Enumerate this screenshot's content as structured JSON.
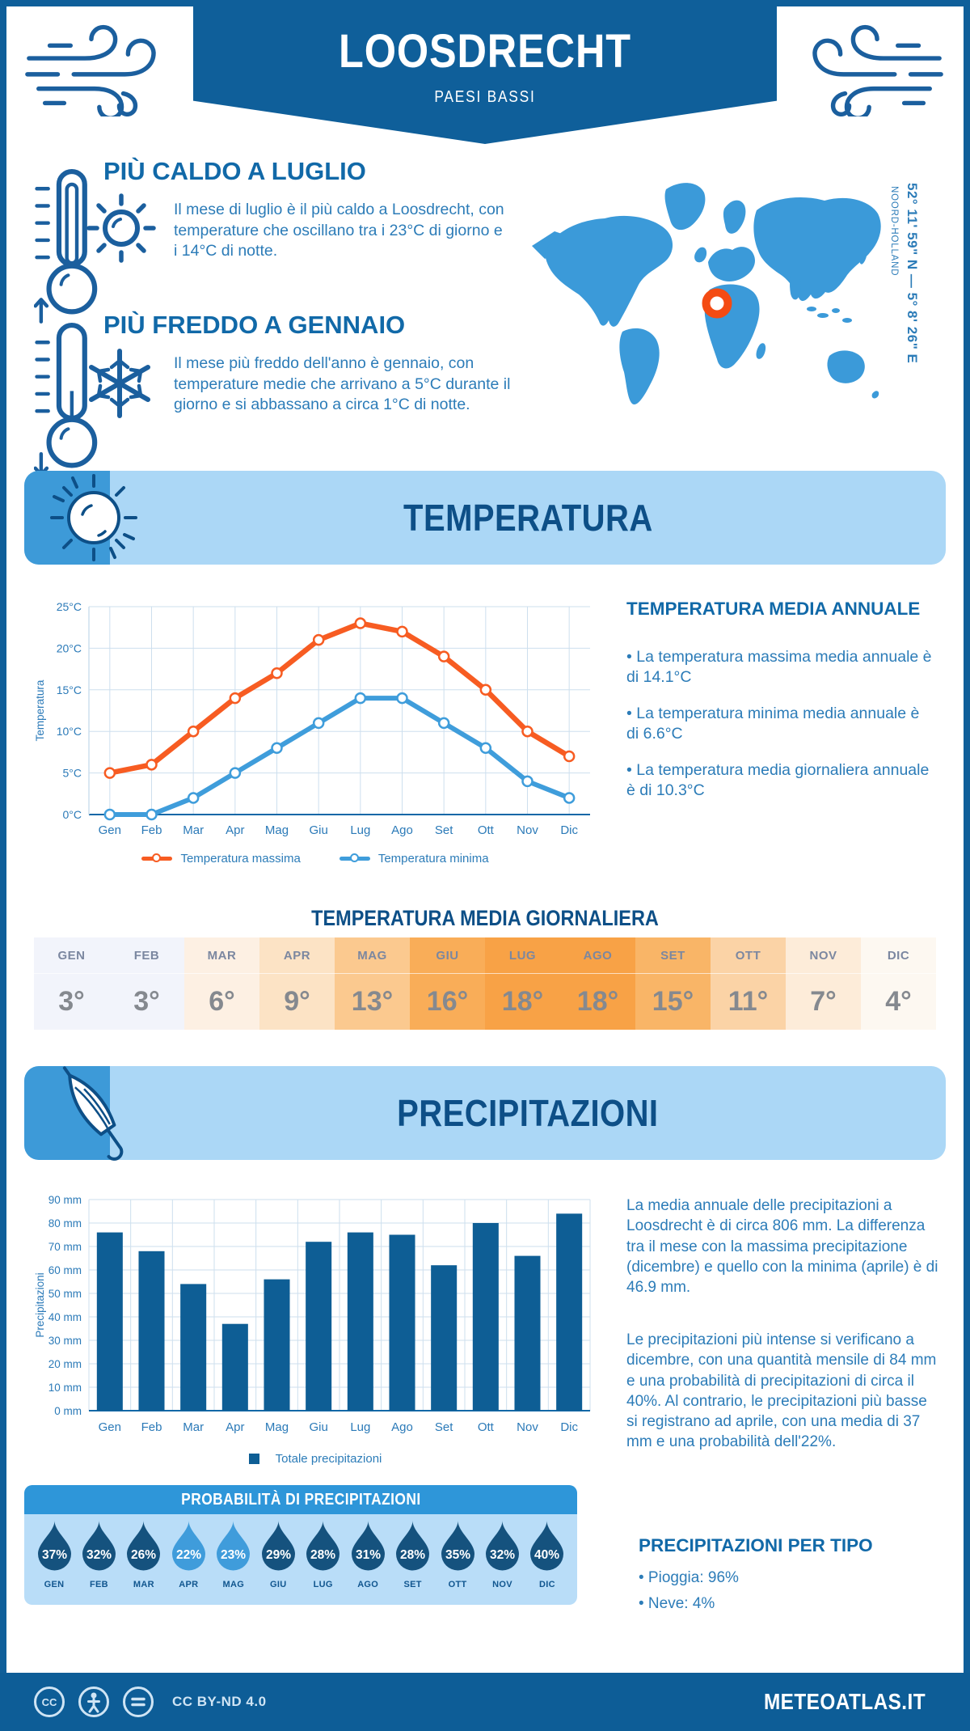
{
  "header": {
    "title": "LOOSDRECHT",
    "subtitle": "PAESI BASSI"
  },
  "highlights": [
    {
      "title": "PIÙ CALDO A LUGLIO",
      "text": "Il mese di luglio è il più caldo a Loosdrecht, con temperature che oscillano tra i 23°C di giorno e i 14°C di notte."
    },
    {
      "title": "PIÙ FREDDO A GENNAIO",
      "text": "Il mese più freddo dell'anno è gennaio, con temperature medie che arrivano a 5°C durante il giorno e si abbassano a circa 1°C di notte."
    }
  ],
  "map": {
    "coordinates": "52° 11' 59\" N — 5° 8' 26\" E",
    "region": "NOORD-HOLLAND",
    "marker_color": "#f44b13",
    "land_color": "#3b9ad9"
  },
  "temperature_section": {
    "banner": "TEMPERATURA",
    "summary_title": "TEMPERATURA MEDIA ANNUALE",
    "bullets": [
      "• La temperatura massima media annuale è di 14.1°C",
      "• La temperatura minima media annuale è di 6.6°C",
      "• La temperatura media giornaliera annuale è di 10.3°C"
    ],
    "daily_title": "TEMPERATURA MEDIA GIORNALIERA"
  },
  "daily_table": {
    "months": [
      "GEN",
      "FEB",
      "MAR",
      "APR",
      "MAG",
      "GIU",
      "LUG",
      "AGO",
      "SET",
      "OTT",
      "NOV",
      "DIC"
    ],
    "values": [
      "3°",
      "3°",
      "6°",
      "9°",
      "13°",
      "16°",
      "18°",
      "18°",
      "15°",
      "11°",
      "7°",
      "4°"
    ],
    "cell_colors": [
      "#f2f4fb",
      "#f2f4fb",
      "#fdf0e3",
      "#fce3c5",
      "#fbc98f",
      "#f9ad58",
      "#f8a246",
      "#f8a246",
      "#f9b567",
      "#fbd3a6",
      "#fdecd9",
      "#fdf8f1"
    ]
  },
  "precipitation_section": {
    "banner": "PRECIPITAZIONI",
    "paragraphs": [
      "La media annuale delle precipitazioni a Loosdrecht è di circa 806 mm. La differenza tra il mese con la massima precipitazione (dicembre) e quello con la minima (aprile) è di 46.9 mm.",
      "Le precipitazioni più intense si verificano a dicembre, con una quantità mensile di 84 mm e una probabilità di precipitazioni di circa il 40%. Al contrario, le precipitazioni più basse si registrano ad aprile, con una media di 37 mm e una probabilità dell'22%."
    ],
    "legend": "Totale precipitazioni"
  },
  "probability": {
    "title": "PROBABILITÀ DI PRECIPITAZIONI",
    "months": [
      "GEN",
      "FEB",
      "MAR",
      "APR",
      "MAG",
      "GIU",
      "LUG",
      "AGO",
      "SET",
      "OTT",
      "NOV",
      "DIC"
    ],
    "values": [
      "37%",
      "32%",
      "26%",
      "22%",
      "23%",
      "29%",
      "28%",
      "31%",
      "28%",
      "35%",
      "32%",
      "40%"
    ],
    "drop_colors": [
      "#15527e",
      "#15527e",
      "#15527e",
      "#3f9cdb",
      "#3f9cdb",
      "#15527e",
      "#15527e",
      "#15527e",
      "#15527e",
      "#15527e",
      "#15527e",
      "#15527e"
    ]
  },
  "precip_type": {
    "title": "PRECIPITAZIONI PER TIPO",
    "items": [
      "• Pioggia: 96%",
      "• Neve: 4%"
    ]
  },
  "footer": {
    "license": "CC BY-ND 4.0",
    "site": "METEOATLAS.IT"
  },
  "colors": {
    "deep_blue": "#0f5f9a",
    "heading_blue": "#1169a8",
    "body_blue": "#2c7cb8",
    "banner_bg": "#abd7f6",
    "banner_tab": "#3d9ad8",
    "banner_title": "#0d4f87",
    "grid": "#cddfee",
    "axis": "#1268a7",
    "tick_text": "#2b7ab8",
    "max_line": "#f75c22",
    "min_line": "#3f9ddb",
    "bar": "#0e5e95",
    "prob_header": "#2e96d9",
    "prob_bg": "#b9ddf8",
    "footer_bg": "#0d5d97"
  },
  "chart_data": [
    {
      "type": "line",
      "categories": [
        "Gen",
        "Feb",
        "Mar",
        "Apr",
        "Mag",
        "Giu",
        "Lug",
        "Ago",
        "Set",
        "Ott",
        "Nov",
        "Dic"
      ],
      "series": [
        {
          "name": "Temperatura massima",
          "color": "#f75c22",
          "values": [
            5,
            6,
            10,
            14,
            17,
            21,
            23,
            22,
            19,
            15,
            10,
            7
          ]
        },
        {
          "name": "Temperatura minima",
          "color": "#3f9ddb",
          "values": [
            0,
            0,
            2,
            5,
            8,
            11,
            14,
            14,
            11,
            8,
            4,
            2
          ]
        }
      ],
      "ylabel": "Temperatura",
      "ylim": [
        0,
        25
      ],
      "ytick_step": 5,
      "ytick_suffix": "°C",
      "grid": true,
      "legend_position": "bottom"
    },
    {
      "type": "bar",
      "categories": [
        "Gen",
        "Feb",
        "Mar",
        "Apr",
        "Mag",
        "Giu",
        "Lug",
        "Ago",
        "Set",
        "Ott",
        "Nov",
        "Dic"
      ],
      "values": [
        76,
        68,
        54,
        37,
        56,
        72,
        76,
        75,
        62,
        80,
        66,
        84
      ],
      "title": "Totale precipitazioni",
      "ylabel": "Precipitazioni",
      "ylim": [
        0,
        90
      ],
      "ytick_step": 10,
      "ytick_suffix": " mm",
      "bar_color": "#0e5e95",
      "grid": true,
      "legend_position": "bottom"
    }
  ]
}
